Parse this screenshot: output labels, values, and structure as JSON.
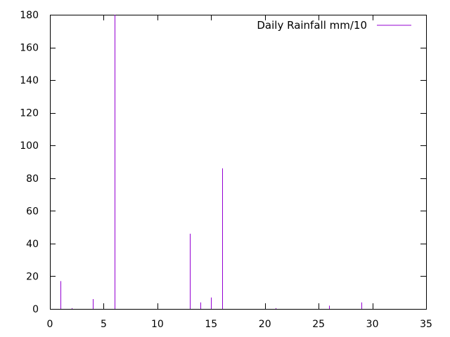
{
  "chart_data": {
    "type": "bar",
    "style": "impulses",
    "title": "",
    "xlabel": "",
    "ylabel": "",
    "xlim": [
      0,
      35
    ],
    "ylim": [
      0,
      180
    ],
    "xticks": [
      0,
      5,
      10,
      15,
      20,
      25,
      30,
      35
    ],
    "yticks": [
      0,
      20,
      40,
      60,
      80,
      100,
      120,
      140,
      160,
      180
    ],
    "grid": false,
    "legend": {
      "placement": "top-right"
    },
    "series": [
      {
        "name": "Daily Rainfall mm/10",
        "color": "#9400d3",
        "x": [
          1,
          2,
          4,
          6,
          13,
          14,
          15,
          16,
          21,
          26,
          29
        ],
        "y": [
          17,
          0.5,
          6,
          180,
          46,
          4,
          7,
          86,
          0.5,
          2,
          4
        ]
      }
    ]
  }
}
